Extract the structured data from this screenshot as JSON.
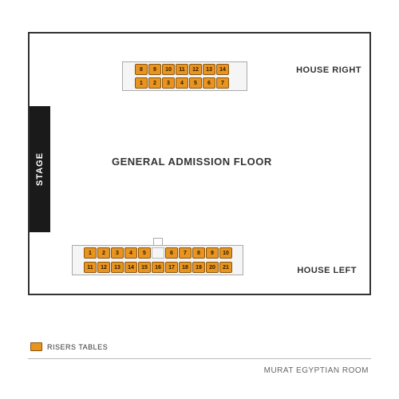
{
  "venue": {
    "name": "MURAT EGYPTIAN ROOM",
    "stage_label": "STAGE",
    "floor_label": "GENERAL ADMISSION FLOOR",
    "house_right_label": "HOUSE RIGHT",
    "house_left_label": "HOUSE LEFT"
  },
  "legend": {
    "label": "RISERS TABLES",
    "swatch_color": "#e8941f"
  },
  "risers": {
    "table_color": "#e8941f",
    "table_border": "#8a5510",
    "right_block": {
      "top_row": [
        "8",
        "9",
        "10",
        "11",
        "12",
        "13",
        "14"
      ],
      "bottom_row": [
        "1",
        "2",
        "3",
        "4",
        "5",
        "6",
        "7"
      ]
    },
    "left_block": {
      "top_row": [
        "1",
        "2",
        "3",
        "4",
        "5",
        "6",
        "7",
        "8",
        "9",
        "10"
      ],
      "top_gap_after_index": 4,
      "bottom_row": [
        "11",
        "12",
        "13",
        "14",
        "15",
        "16",
        "17",
        "18",
        "19",
        "20",
        "21"
      ]
    }
  },
  "colors": {
    "stage_bg": "#1a1a1a",
    "border": "#333333",
    "background": "#ffffff"
  }
}
